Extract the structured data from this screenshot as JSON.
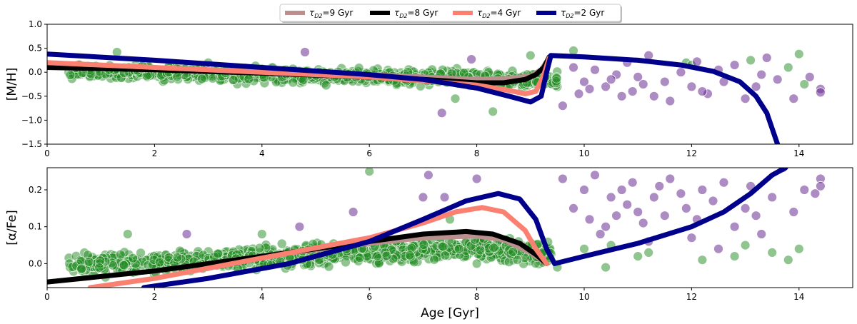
{
  "chart_data": {
    "type": "scatter",
    "legend": {
      "placement": "top-center",
      "entries": [
        {
          "label_pre": "τ",
          "label_sub": "D2",
          "label_post": "=9 Gyr",
          "color": "#bc8f8f"
        },
        {
          "label_pre": "τ",
          "label_sub": "D2",
          "label_post": "=8 Gyr",
          "color": "#000000"
        },
        {
          "label_pre": "τ",
          "label_sub": "D2",
          "label_post": "=4 Gyr",
          "color": "#fa8072"
        },
        {
          "label_pre": "τ",
          "label_sub": "D2",
          "label_post": "=2 Gyr",
          "color": "#00008b"
        }
      ]
    },
    "xlabel": "Age [Gyr]",
    "panels": [
      {
        "id": "mh",
        "ylabel": "[M/H]",
        "xlim": [
          0,
          15
        ],
        "ylim": [
          -1.5,
          1.0
        ],
        "xticks": [
          0,
          2,
          4,
          6,
          8,
          10,
          12,
          14
        ],
        "yticks": [
          1.0,
          0.5,
          0.0,
          -0.5,
          -1.0,
          -1.5
        ],
        "yticklabels": [
          "1.0",
          "0.5",
          "0.0",
          "−0.5",
          "−1.0",
          "−1.5"
        ],
        "cloud": {
          "xmin": 0.4,
          "xmax": 9.5,
          "center": [
            [
              0.4,
              0.02
            ],
            [
              4,
              -0.05
            ],
            [
              8,
              -0.12
            ],
            [
              9.5,
              -0.18
            ]
          ],
          "spread": 0.16,
          "count": 900
        },
        "scatter_green": [
          [
            3.0,
            0.2
          ],
          [
            1.3,
            0.42
          ],
          [
            7.6,
            -0.55
          ],
          [
            8.3,
            -0.82
          ],
          [
            9.0,
            0.35
          ],
          [
            9.8,
            0.45
          ],
          [
            11.9,
            0.2
          ],
          [
            12.0,
            0.15
          ],
          [
            14.0,
            0.38
          ],
          [
            13.8,
            0.1
          ],
          [
            14.1,
            -0.25
          ],
          [
            13.1,
            0.25
          ]
        ],
        "scatter_purple": [
          [
            4.8,
            0.42
          ],
          [
            7.9,
            0.27
          ],
          [
            7.35,
            -0.85
          ],
          [
            9.6,
            -0.7
          ],
          [
            9.8,
            0.1
          ],
          [
            10.0,
            -0.2
          ],
          [
            10.2,
            0.05
          ],
          [
            10.4,
            -0.3
          ],
          [
            10.6,
            -0.05
          ],
          [
            10.8,
            0.2
          ],
          [
            10.9,
            -0.4
          ],
          [
            11.0,
            -0.1
          ],
          [
            11.2,
            0.35
          ],
          [
            11.3,
            -0.5
          ],
          [
            11.5,
            -0.2
          ],
          [
            11.6,
            -0.6
          ],
          [
            11.8,
            0.0
          ],
          [
            12.0,
            -0.3
          ],
          [
            12.1,
            0.22
          ],
          [
            12.3,
            -0.45
          ],
          [
            12.6,
            -0.2
          ],
          [
            12.8,
            0.15
          ],
          [
            13.0,
            -0.55
          ],
          [
            13.2,
            -0.3
          ],
          [
            13.4,
            0.3
          ],
          [
            13.6,
            -0.15
          ],
          [
            13.9,
            -0.55
          ],
          [
            14.2,
            -0.1
          ],
          [
            14.4,
            -0.35
          ],
          [
            14.4,
            -0.42
          ],
          [
            10.1,
            -0.35
          ],
          [
            10.5,
            -0.15
          ],
          [
            11.1,
            -0.25
          ],
          [
            9.9,
            -0.45
          ],
          [
            12.5,
            0.05
          ],
          [
            13.3,
            -0.05
          ],
          [
            10.7,
            -0.5
          ],
          [
            12.2,
            -0.4
          ]
        ],
        "series": [
          {
            "name_key": 0,
            "color": "#bc8f8f",
            "points": [
              [
                0,
                0.15
              ],
              [
                2,
                0.08
              ],
              [
                4,
                0.02
              ],
              [
                6,
                -0.05
              ],
              [
                7,
                -0.1
              ],
              [
                8,
                -0.15
              ],
              [
                8.6,
                -0.13
              ],
              [
                9.0,
                -0.08
              ],
              [
                9.2,
                0.05
              ],
              [
                9.35,
                0.3
              ]
            ]
          },
          {
            "name_key": 1,
            "color": "#000000",
            "points": [
              [
                0,
                0.1
              ],
              [
                2,
                0.05
              ],
              [
                4,
                -0.02
              ],
              [
                6,
                -0.1
              ],
              [
                7,
                -0.15
              ],
              [
                8,
                -0.22
              ],
              [
                8.5,
                -0.22
              ],
              [
                8.9,
                -0.15
              ],
              [
                9.1,
                -0.05
              ],
              [
                9.25,
                0.1
              ],
              [
                9.35,
                0.32
              ]
            ]
          },
          {
            "name_key": 2,
            "color": "#fa8072",
            "points": [
              [
                0,
                0.2
              ],
              [
                2,
                0.1
              ],
              [
                4,
                0.0
              ],
              [
                6,
                -0.1
              ],
              [
                7,
                -0.18
              ],
              [
                8,
                -0.27
              ],
              [
                8.6,
                -0.38
              ],
              [
                8.9,
                -0.45
              ],
              [
                9.1,
                -0.4
              ],
              [
                9.25,
                -0.05
              ],
              [
                9.35,
                0.3
              ]
            ]
          },
          {
            "name_key": 3,
            "color": "#00008b",
            "points": [
              [
                0,
                0.38
              ],
              [
                2,
                0.25
              ],
              [
                4,
                0.1
              ],
              [
                6,
                -0.05
              ],
              [
                7,
                -0.15
              ],
              [
                8,
                -0.33
              ],
              [
                8.6,
                -0.5
              ],
              [
                9.0,
                -0.62
              ],
              [
                9.2,
                -0.5
              ],
              [
                9.3,
                0.0
              ],
              [
                9.38,
                0.35
              ],
              [
                10,
                0.32
              ],
              [
                11,
                0.25
              ],
              [
                11.8,
                0.15
              ],
              [
                12.4,
                0.02
              ],
              [
                12.9,
                -0.2
              ],
              [
                13.2,
                -0.5
              ],
              [
                13.4,
                -0.85
              ],
              [
                13.6,
                -1.5
              ]
            ]
          }
        ]
      },
      {
        "id": "afe",
        "ylabel": "[α/Fe]",
        "xlim": [
          0,
          15
        ],
        "ylim": [
          -0.065,
          0.26
        ],
        "xticks": [
          0,
          2,
          4,
          6,
          8,
          10,
          12,
          14
        ],
        "yticks": [
          0.2,
          0.1,
          0.0
        ],
        "yticklabels": [
          "0.2",
          "0.1",
          "0.0"
        ],
        "cloud": {
          "xmin": 0.4,
          "xmax": 9.4,
          "center": [
            [
              0.4,
              -0.005
            ],
            [
              3,
              0.01
            ],
            [
              6,
              0.03
            ],
            [
              8,
              0.04
            ],
            [
              9.4,
              0.03
            ]
          ],
          "spread": 0.03,
          "count": 900
        },
        "scatter_green": [
          [
            1.5,
            0.08
          ],
          [
            4.0,
            0.08
          ],
          [
            6.0,
            0.25
          ],
          [
            6.5,
            0.06
          ],
          [
            7.5,
            0.12
          ],
          [
            8.0,
            0.0
          ],
          [
            9.5,
            -0.01
          ],
          [
            10.0,
            0.04
          ],
          [
            10.5,
            0.05
          ],
          [
            11.0,
            0.02
          ],
          [
            11.2,
            0.03
          ],
          [
            12.2,
            0.01
          ],
          [
            12.8,
            0.02
          ],
          [
            13.0,
            0.05
          ],
          [
            13.5,
            0.03
          ],
          [
            13.8,
            0.01
          ],
          [
            14.0,
            0.04
          ],
          [
            10.4,
            -0.01
          ]
        ],
        "scatter_purple": [
          [
            2.6,
            0.08
          ],
          [
            4.7,
            0.1
          ],
          [
            5.7,
            0.14
          ],
          [
            7.0,
            0.18
          ],
          [
            7.1,
            0.24
          ],
          [
            7.4,
            0.18
          ],
          [
            8.0,
            0.23
          ],
          [
            9.6,
            0.23
          ],
          [
            9.8,
            0.15
          ],
          [
            10.0,
            0.2
          ],
          [
            10.1,
            0.12
          ],
          [
            10.2,
            0.24
          ],
          [
            10.4,
            0.1
          ],
          [
            10.5,
            0.18
          ],
          [
            10.6,
            0.13
          ],
          [
            10.7,
            0.2
          ],
          [
            10.8,
            0.16
          ],
          [
            10.9,
            0.22
          ],
          [
            11.0,
            0.14
          ],
          [
            11.1,
            0.11
          ],
          [
            11.3,
            0.18
          ],
          [
            11.4,
            0.21
          ],
          [
            11.5,
            0.13
          ],
          [
            11.6,
            0.23
          ],
          [
            11.8,
            0.19
          ],
          [
            11.9,
            0.15
          ],
          [
            12.0,
            0.07
          ],
          [
            12.1,
            0.12
          ],
          [
            12.2,
            0.2
          ],
          [
            12.4,
            0.17
          ],
          [
            12.6,
            0.22
          ],
          [
            12.8,
            0.1
          ],
          [
            13.0,
            0.15
          ],
          [
            13.1,
            0.21
          ],
          [
            13.3,
            0.08
          ],
          [
            13.5,
            0.18
          ],
          [
            13.7,
            0.26
          ],
          [
            13.9,
            0.14
          ],
          [
            14.1,
            0.2
          ],
          [
            14.3,
            0.19
          ],
          [
            14.4,
            0.23
          ],
          [
            14.4,
            0.21
          ],
          [
            10.3,
            0.08
          ],
          [
            11.2,
            0.06
          ],
          [
            12.5,
            0.04
          ],
          [
            13.2,
            0.13
          ]
        ],
        "series": [
          {
            "name_key": 0,
            "color": "#bc8f8f",
            "points": [
              [
                0,
                -0.05
              ],
              [
                2,
                -0.02
              ],
              [
                4,
                0.02
              ],
              [
                6,
                0.055
              ],
              [
                7,
                0.07
              ],
              [
                8,
                0.075
              ],
              [
                8.5,
                0.065
              ],
              [
                9.0,
                0.03
              ],
              [
                9.3,
                0.0
              ]
            ]
          },
          {
            "name_key": 1,
            "color": "#000000",
            "points": [
              [
                0,
                -0.05
              ],
              [
                2,
                -0.02
              ],
              [
                4,
                0.02
              ],
              [
                6,
                0.06
              ],
              [
                7,
                0.08
              ],
              [
                7.8,
                0.087
              ],
              [
                8.3,
                0.08
              ],
              [
                8.8,
                0.055
              ],
              [
                9.1,
                0.025
              ],
              [
                9.3,
                0.0
              ]
            ]
          },
          {
            "name_key": 2,
            "color": "#fa8072",
            "points": [
              [
                0.8,
                -0.065
              ],
              [
                2,
                -0.04
              ],
              [
                4,
                0.015
              ],
              [
                6,
                0.07
              ],
              [
                7,
                0.11
              ],
              [
                7.6,
                0.14
              ],
              [
                8.1,
                0.152
              ],
              [
                8.5,
                0.14
              ],
              [
                8.9,
                0.09
              ],
              [
                9.1,
                0.04
              ],
              [
                9.3,
                0.0
              ]
            ]
          },
          {
            "name_key": 3,
            "color": "#00008b",
            "points": [
              [
                1.8,
                -0.065
              ],
              [
                3,
                -0.04
              ],
              [
                4.5,
                0.0
              ],
              [
                6,
                0.06
              ],
              [
                7,
                0.12
              ],
              [
                7.8,
                0.17
              ],
              [
                8.4,
                0.19
              ],
              [
                8.8,
                0.175
              ],
              [
                9.1,
                0.12
              ],
              [
                9.3,
                0.04
              ],
              [
                9.45,
                0.0
              ],
              [
                10,
                0.02
              ],
              [
                11,
                0.055
              ],
              [
                12,
                0.1
              ],
              [
                12.6,
                0.14
              ],
              [
                13.1,
                0.19
              ],
              [
                13.5,
                0.24
              ],
              [
                13.75,
                0.26
              ]
            ]
          }
        ]
      }
    ]
  }
}
